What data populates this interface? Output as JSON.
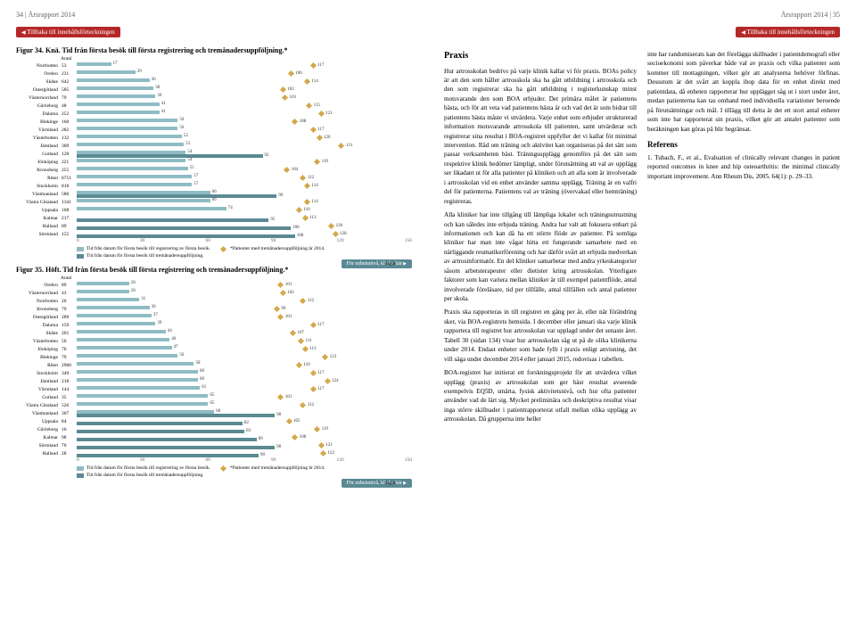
{
  "header_left": "34 | Årsrapport 2014",
  "header_right": "Årsrapport 2014 | 35",
  "nav_button": "Tillbaka till innehållsförteckningen",
  "unit_button": "För enhetsnivå, klicka här",
  "axis_unit": "dagar",
  "count_header": "Antal",
  "fig34": {
    "title": "Figur 34. Knä. Tid från första besök till första registrering och tremånadersuppföljning.*",
    "type": "bar",
    "xlim": [
      0,
      150
    ],
    "xticks": [
      0,
      30,
      60,
      90,
      120,
      150
    ],
    "bar1_color": "#8fbcc4",
    "bar2_color": "#5a8a94",
    "diamond_color": "#d4a84a",
    "background_color": "#ffffff",
    "grid_color": "#e0e0e0",
    "label_fontsize": 5.5,
    "rows": [
      {
        "label": "Norrbotten",
        "n": 53,
        "b1": 17,
        "b2": null,
        "d": 117
      },
      {
        "label": "Örebro",
        "n": 231,
        "b1": 29,
        "b2": null,
        "d": 106
      },
      {
        "label": "Skåne",
        "n": 642,
        "b1": 36,
        "b2": null,
        "d": 114
      },
      {
        "label": "Östergötland",
        "n": 585,
        "b1": 38,
        "b2": null,
        "d": 102
      },
      {
        "label": "Västernorrland",
        "n": 79,
        "b1": 39,
        "b2": null,
        "d": 103
      },
      {
        "label": "Gävleborg",
        "n": 48,
        "b1": 41,
        "b2": null,
        "d": 115
      },
      {
        "label": "Dalarna",
        "n": 252,
        "b1": 41,
        "b2": null,
        "d": 121
      },
      {
        "label": "Blekinge",
        "n": 160,
        "b1": 50,
        "b2": null,
        "d": 108
      },
      {
        "label": "Värmland",
        "n": 282,
        "b1": 50,
        "b2": null,
        "d": 117
      },
      {
        "label": "Västerbotten",
        "n": 132,
        "b1": 52,
        "b2": null,
        "d": 120
      },
      {
        "label": "Jämtland",
        "n": 309,
        "b1": 53,
        "b2": null,
        "d": 131
      },
      {
        "label": "Gotland",
        "n": 128,
        "b1": 54,
        "b2": 92,
        "d": null
      },
      {
        "label": "Jönköping",
        "n": 221,
        "b1": 54,
        "b2": null,
        "d": 119
      },
      {
        "label": "Kronoberg",
        "n": 255,
        "b1": 55,
        "b2": null,
        "d": 104
      },
      {
        "label": "Riket",
        "n": 6751,
        "b1": 57,
        "b2": null,
        "d": 112
      },
      {
        "label": "Stockholm",
        "n": 818,
        "b1": 57,
        "b2": null,
        "d": 114
      },
      {
        "label": "Västmanland",
        "n": 586,
        "b1": 66,
        "b2": 99,
        "d": null
      },
      {
        "label": "Västra Götaland",
        "n": 1341,
        "b1": 66,
        "b2": null,
        "d": 114
      },
      {
        "label": "Uppsala",
        "n": 168,
        "b1": 74,
        "b2": null,
        "d": 110
      },
      {
        "label": "Kalmar",
        "n": 217,
        "b1": null,
        "b2": 95,
        "d": 113
      },
      {
        "label": "Halland",
        "n": 89,
        "b1": null,
        "b2": 106,
        "d": 126
      },
      {
        "label": "Sörmland",
        "n": 155,
        "b1": null,
        "b2": 108,
        "d": 128
      }
    ]
  },
  "fig35": {
    "title": "Figur 35. Höft. Tid från första besök till första registrering och tremånadersuppföljning.*",
    "type": "bar",
    "xlim": [
      0,
      150
    ],
    "xticks": [
      0,
      30,
      60,
      90,
      120,
      150
    ],
    "bar1_color": "#8fbcc4",
    "bar2_color": "#5a8a94",
    "diamond_color": "#d4a84a",
    "rows": [
      {
        "label": "Örebro",
        "n": 89,
        "b1": 26,
        "b2": null,
        "d": 101
      },
      {
        "label": "Västernorrland",
        "n": 43,
        "b1": 26,
        "b2": null,
        "d": 102
      },
      {
        "label": "Norrbotten",
        "n": 20,
        "b1": 31,
        "b2": null,
        "d": 112
      },
      {
        "label": "Kronoberg",
        "n": 79,
        "b1": 36,
        "b2": null,
        "d": 99
      },
      {
        "label": "Östergötland",
        "n": 289,
        "b1": 37,
        "b2": null,
        "d": 101
      },
      {
        "label": "Dalarna",
        "n": 159,
        "b1": 39,
        "b2": null,
        "d": 117
      },
      {
        "label": "Skåne",
        "n": 201,
        "b1": 44,
        "b2": null,
        "d": 107
      },
      {
        "label": "Västerbotten",
        "n": 50,
        "b1": 46,
        "b2": null,
        "d": 111
      },
      {
        "label": "Jönköping",
        "n": 76,
        "b1": 47,
        "b2": null,
        "d": 113
      },
      {
        "label": "Blekinge",
        "n": 79,
        "b1": 50,
        "b2": null,
        "d": 123
      },
      {
        "label": "Riket",
        "n": 2960,
        "b1": 58,
        "b2": null,
        "d": 110
      },
      {
        "label": "Stockholm",
        "n": 349,
        "b1": 60,
        "b2": null,
        "d": 117
      },
      {
        "label": "Jämtland",
        "n": 218,
        "b1": 60,
        "b2": null,
        "d": 124
      },
      {
        "label": "Värmland",
        "n": 144,
        "b1": 61,
        "b2": null,
        "d": 117
      },
      {
        "label": "Gotland",
        "n": 35,
        "b1": 65,
        "b2": null,
        "d": 101
      },
      {
        "label": "Västra Götaland",
        "n": 526,
        "b1": 65,
        "b2": null,
        "d": 112
      },
      {
        "label": "Västmanland",
        "n": 307,
        "b1": 68,
        "b2": 98,
        "d": null
      },
      {
        "label": "Uppsala",
        "n": 84,
        "b1": null,
        "b2": 82,
        "d": 105
      },
      {
        "label": "Gävleborg",
        "n": 16,
        "b1": null,
        "b2": 83,
        "d": 119
      },
      {
        "label": "Kalmar",
        "n": 98,
        "b1": null,
        "b2": 89,
        "d": 108
      },
      {
        "label": "Sörmland",
        "n": 70,
        "b1": null,
        "b2": 98,
        "d": 121
      },
      {
        "label": "Halland",
        "n": 28,
        "b1": null,
        "b2": 90,
        "d": 122
      }
    ]
  },
  "legend": {
    "bar1": "Tid från datum för första besök till registrering av första besök.",
    "bar2": "Tid från datum för första besök till tremånadersuppföljning.",
    "diamond": "*Patienter med tremånadersuppföljning år 2014."
  },
  "praxis": {
    "heading": "Praxis",
    "p1": "Hur artrosskolan bedrivs på varje klinik kallar vi för praxis. BOAs policy är att den som håller artrosskola ska ha gått utbildning i artrosskola och den som registrerar ska ha gått utbildning i registerkunskap minst motsvarande den som BOA erbjuder. Det primära målet är patientens bästa, och för att veta vad patientens bästa är och vad det är som bidrar till patientens bästa måste vi utvärdera. Varje enhet som erbjuder strukturerad information motsvarande artrosskola till patienten, samt utvärderar och registrerar sina resultat i BOA-registret uppfyller det vi kallar för minimal intervention. Råd om träning och aktivitet kan organiseras på det sätt som passar verksamheten bäst. Träningsupplägg genomförs på det sätt som respektive klinik bedömer lämpligt, under förutsättning att val av upplägg ser likadant ut för alla patienter på kliniken och att alla som är involverade i artrosskolan vid en enhet använder samma upplägg. Träning är en valfri del för patienterna. Patientens val av träning (övervakad eller hemträning) registreras.",
    "p2": "Alla kliniker har inte tillgång till lämpliga lokaler och träningsutrustning och kan således inte erbjuda träning. Andra har valt att fokusera enbart på informationen och kan då ha ett större flöde av patienter. På somliga kliniker har man inte vågat hitta ett fungerande samarbete med en närliggande reumatikerförening och har därför svårt att erbjuda medverkan av artrosinformatör. En del kliniker samarbetar med andra yrkeskategorier såsom arbetsterapeuter eller dietister kring artrosskolan. Ytterligare faktorer som kan variera mellan kliniker är till exempel patientflöde, antal involverade föreläsare, tid per tillfälle, antal tillfällen och antal patienter per skola.",
    "p3": "Praxis ska rapporteras in till registret en gång per år, eller när förändring sker, via BOA-registrets hemsida. I december eller januari ska varje klinik rapportera till registret hur artrosskolan var upplagd under det senaste året. Tabell 30 (sidan 134) visar hur artrosskolan såg ut på de olika klinikerna under 2014. Endast enheter som hade fyllt i praxis enligt anvisning, det vill säga under december 2014 eller januari 2015, redovisas i tabellen.",
    "p4": "BOA-registret har initierat ett forskningsprojekt för att utvärdera vilket upplägg (praxis) av artrosskolan som ger bäst resultat avseende exempelvis EQ5D, smärta, fysisk aktivitetsnivå, och hur ofta patienter använder vad de lärt sig. Mycket preliminära och deskriptiva resultat visar inga större skillnader i patientrapporterat utfall mellan olika upplägg av artrosskolan. Då grupperna inte heller",
    "p5": "inte har randomiserats kan det förelägga skillnader i patientdemografi eller socioekonomi som påverkar både val av praxis och vilka patienter som kommer till mottagningen, vilket gör att analyserna behöver förfinas. Dessutom är det svårt att koppla ihop data för en enhet direkt med patientdata, då enheten rapporterar hur upplägget såg ut i stort under året, medan patienterna kan tas omhand med individuella variationer beroende på förutsättningar och mål. I tillägg till detta är det ett stort antal enheter som inte har rapporterat sin praxis, vilket gör att antalet patienter som beräkningen kan göras på blir begränsat.",
    "ref_heading": "Referens",
    "ref": "1. Tubach, F., et al., Evaluation of clinically relevant changes in patient reported outcomes in knee and hip osteoarthritis: the minimal clinically important improvement. Ann Rheum Dis, 2005. 64(1): p. 29–33."
  }
}
